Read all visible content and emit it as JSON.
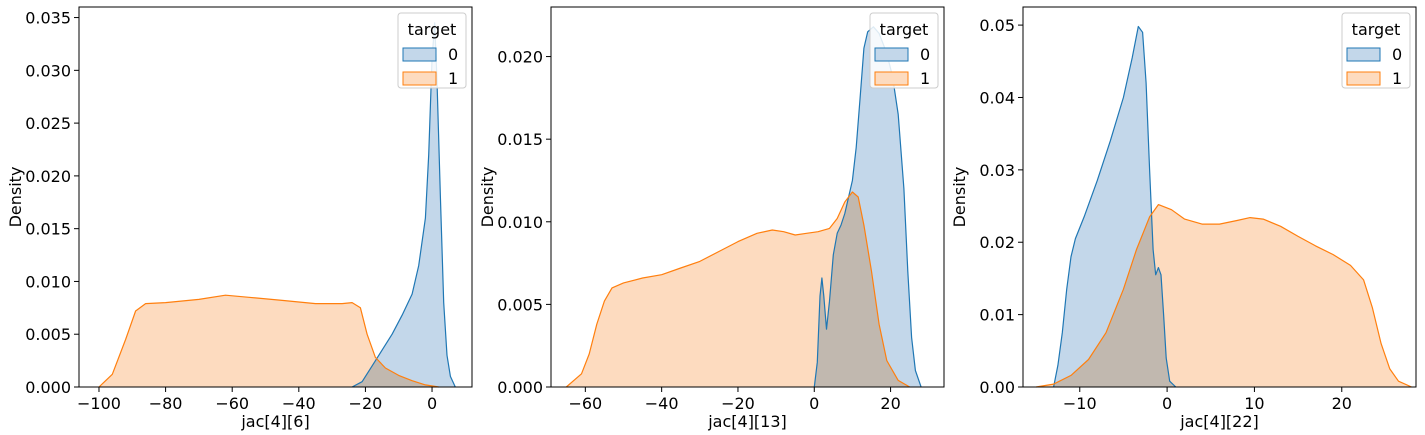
{
  "chart_data": [
    {
      "type": "area",
      "xlabel": "jac[4][6]",
      "ylabel": "Density",
      "xlim": [
        -106,
        12
      ],
      "ylim": [
        0,
        0.036
      ],
      "xticks": [
        -100,
        -80,
        -60,
        -40,
        -20,
        0
      ],
      "xtick_labels": [
        "−100",
        "−80",
        "−60",
        "−40",
        "−20",
        "0"
      ],
      "yticks": [
        0.0,
        0.005,
        0.01,
        0.015,
        0.02,
        0.025,
        0.03,
        0.035
      ],
      "ytick_labels": [
        "0.000",
        "0.005",
        "0.010",
        "0.015",
        "0.020",
        "0.025",
        "0.030",
        "0.035"
      ],
      "legend": {
        "title": "target",
        "placement": "top-right",
        "entries": [
          "0",
          "1"
        ]
      },
      "series": [
        {
          "name": "0",
          "color": "#1f77b4",
          "points": [
            [
              -24,
              0
            ],
            [
              -21,
              0.0005
            ],
            [
              -18,
              0.002
            ],
            [
              -15,
              0.0035
            ],
            [
              -12,
              0.005
            ],
            [
              -9,
              0.0068
            ],
            [
              -6,
              0.0088
            ],
            [
              -4,
              0.0115
            ],
            [
              -2,
              0.016
            ],
            [
              -1,
              0.022
            ],
            [
              0,
              0.031
            ],
            [
              0.8,
              0.0345
            ],
            [
              1.5,
              0.029
            ],
            [
              2.5,
              0.018
            ],
            [
              3.5,
              0.008
            ],
            [
              4.5,
              0.003
            ],
            [
              5.5,
              0.001
            ],
            [
              7,
              0
            ]
          ]
        },
        {
          "name": "1",
          "color": "#ff7f0e",
          "points": [
            [
              -100,
              0
            ],
            [
              -96,
              0.0012
            ],
            [
              -92,
              0.0045
            ],
            [
              -89,
              0.0072
            ],
            [
              -86,
              0.0079
            ],
            [
              -80,
              0.008
            ],
            [
              -70,
              0.0083
            ],
            [
              -62,
              0.0087
            ],
            [
              -55,
              0.0085
            ],
            [
              -45,
              0.0082
            ],
            [
              -35,
              0.0079
            ],
            [
              -27,
              0.0079
            ],
            [
              -24,
              0.008
            ],
            [
              -21.5,
              0.0075
            ],
            [
              -19.5,
              0.005
            ],
            [
              -17,
              0.0028
            ],
            [
              -14,
              0.0018
            ],
            [
              -10,
              0.0011
            ],
            [
              -6,
              0.0006
            ],
            [
              -2,
              0.0002
            ],
            [
              2,
              0
            ]
          ]
        }
      ]
    },
    {
      "type": "area",
      "xlabel": "jac[4][13]",
      "ylabel": "Density",
      "xlim": [
        -69,
        34
      ],
      "ylim": [
        0,
        0.023
      ],
      "xticks": [
        -60,
        -40,
        -20,
        0,
        20
      ],
      "xtick_labels": [
        "−60",
        "−40",
        "−20",
        "0",
        "20"
      ],
      "yticks": [
        0.0,
        0.005,
        0.01,
        0.015,
        0.02
      ],
      "ytick_labels": [
        "0.000",
        "0.005",
        "0.010",
        "0.015",
        "0.020"
      ],
      "legend": {
        "title": "target",
        "placement": "top-right",
        "entries": [
          "0",
          "1"
        ]
      },
      "series": [
        {
          "name": "0",
          "color": "#1f77b4",
          "points": [
            [
              0,
              0
            ],
            [
              0.8,
              0.0015
            ],
            [
              1.5,
              0.0055
            ],
            [
              2,
              0.0066
            ],
            [
              2.5,
              0.0055
            ],
            [
              3.2,
              0.0035
            ],
            [
              4,
              0.0052
            ],
            [
              5,
              0.008
            ],
            [
              6,
              0.0093
            ],
            [
              7,
              0.0098
            ],
            [
              8,
              0.0105
            ],
            [
              9,
              0.0115
            ],
            [
              10,
              0.0125
            ],
            [
              11,
              0.0145
            ],
            [
              12,
              0.0175
            ],
            [
              13,
              0.0205
            ],
            [
              14,
              0.0215
            ],
            [
              15.5,
              0.0218
            ],
            [
              17,
              0.0214
            ],
            [
              19,
              0.0202
            ],
            [
              20.5,
              0.0188
            ],
            [
              22,
              0.0165
            ],
            [
              23.5,
              0.012
            ],
            [
              24.5,
              0.007
            ],
            [
              25.5,
              0.003
            ],
            [
              26.5,
              0.001
            ],
            [
              28,
              0
            ]
          ]
        },
        {
          "name": "1",
          "color": "#ff7f0e",
          "points": [
            [
              -65,
              0
            ],
            [
              -61,
              0.0008
            ],
            [
              -59,
              0.002
            ],
            [
              -57,
              0.0038
            ],
            [
              -55,
              0.0052
            ],
            [
              -53,
              0.006
            ],
            [
              -50,
              0.0063
            ],
            [
              -45,
              0.0066
            ],
            [
              -40,
              0.0068
            ],
            [
              -35,
              0.0072
            ],
            [
              -30,
              0.0076
            ],
            [
              -25,
              0.0082
            ],
            [
              -20,
              0.0088
            ],
            [
              -15,
              0.0093
            ],
            [
              -11,
              0.0095
            ],
            [
              -8,
              0.0094
            ],
            [
              -5,
              0.0092
            ],
            [
              -2,
              0.0093
            ],
            [
              1,
              0.0094
            ],
            [
              4,
              0.0096
            ],
            [
              6,
              0.0102
            ],
            [
              8,
              0.0112
            ],
            [
              10,
              0.0118
            ],
            [
              11.5,
              0.0115
            ],
            [
              13,
              0.0098
            ],
            [
              15,
              0.007
            ],
            [
              17,
              0.0038
            ],
            [
              19,
              0.0016
            ],
            [
              22,
              0.0004
            ],
            [
              25,
              0
            ]
          ]
        }
      ]
    },
    {
      "type": "area",
      "xlabel": "jac[4][22]",
      "ylabel": "Density",
      "xlim": [
        -16.5,
        28.5
      ],
      "ylim": [
        0,
        0.0525
      ],
      "xticks": [
        -10,
        0,
        10,
        20
      ],
      "xtick_labels": [
        "−10",
        "0",
        "10",
        "20"
      ],
      "yticks": [
        0.0,
        0.01,
        0.02,
        0.03,
        0.04,
        0.05
      ],
      "ytick_labels": [
        "0.00",
        "0.01",
        "0.02",
        "0.03",
        "0.04",
        "0.05"
      ],
      "legend": {
        "title": "target",
        "placement": "top-right",
        "entries": [
          "0",
          "1"
        ]
      },
      "series": [
        {
          "name": "0",
          "color": "#1f77b4",
          "points": [
            [
              -13,
              0
            ],
            [
              -12.5,
              0.003
            ],
            [
              -12,
              0.0075
            ],
            [
              -11.5,
              0.0135
            ],
            [
              -11,
              0.018
            ],
            [
              -10.5,
              0.0205
            ],
            [
              -9.5,
              0.0235
            ],
            [
              -8,
              0.0285
            ],
            [
              -6.5,
              0.034
            ],
            [
              -5,
              0.04
            ],
            [
              -4,
              0.0455
            ],
            [
              -3.3,
              0.0498
            ],
            [
              -2.8,
              0.049
            ],
            [
              -2.4,
              0.042
            ],
            [
              -2,
              0.03
            ],
            [
              -1.6,
              0.019
            ],
            [
              -1.3,
              0.0155
            ],
            [
              -1,
              0.0165
            ],
            [
              -0.7,
              0.0155
            ],
            [
              -0.4,
              0.01
            ],
            [
              -0.1,
              0.004
            ],
            [
              0.3,
              0.0008
            ],
            [
              1,
              0
            ]
          ]
        },
        {
          "name": "1",
          "color": "#ff7f0e",
          "points": [
            [
              -15,
              0
            ],
            [
              -13,
              0.0004
            ],
            [
              -11,
              0.0016
            ],
            [
              -9,
              0.0038
            ],
            [
              -7,
              0.0075
            ],
            [
              -5,
              0.0135
            ],
            [
              -3.5,
              0.019
            ],
            [
              -2,
              0.0235
            ],
            [
              -1,
              0.0252
            ],
            [
              0.5,
              0.0245
            ],
            [
              2,
              0.0232
            ],
            [
              4,
              0.0225
            ],
            [
              6,
              0.0225
            ],
            [
              8,
              0.023
            ],
            [
              9.5,
              0.0234
            ],
            [
              11,
              0.0232
            ],
            [
              13,
              0.0222
            ],
            [
              15,
              0.0208
            ],
            [
              17,
              0.0195
            ],
            [
              19,
              0.0183
            ],
            [
              21,
              0.0168
            ],
            [
              22.5,
              0.0148
            ],
            [
              23.5,
              0.011
            ],
            [
              24.5,
              0.006
            ],
            [
              25.5,
              0.0025
            ],
            [
              26.5,
              0.0008
            ],
            [
              28,
              0
            ]
          ]
        }
      ]
    }
  ]
}
